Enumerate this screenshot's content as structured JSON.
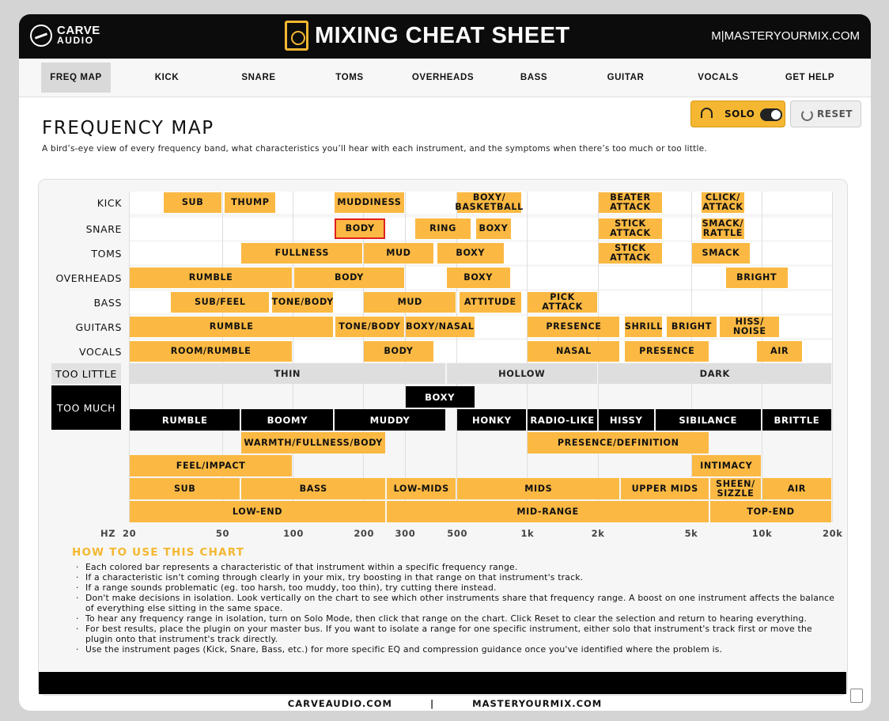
{
  "app": {
    "brand_line1": "CARVE",
    "brand_line2": "AUDIO",
    "title": "MIXING CHEAT SHEET",
    "site": "M|MASTERYOURMIX.COM"
  },
  "nav": [
    {
      "label": "FREQ MAP",
      "active": true
    },
    {
      "label": "KICK"
    },
    {
      "label": "SNARE"
    },
    {
      "label": "TOMS"
    },
    {
      "label": "OVERHEADS"
    },
    {
      "label": "BASS"
    },
    {
      "label": "GUITAR"
    },
    {
      "label": "VOCALS"
    },
    {
      "label": "GET HELP"
    }
  ],
  "controls": {
    "solo_label": "SOLO",
    "solo_on": true,
    "reset_label": "RESET"
  },
  "page": {
    "title": "FREQUENCY MAP",
    "description": "A bird’s-eye view of every frequency band, what characteristics you’ll hear with each instrument, and the symptoms when there’s too much or too little."
  },
  "axis": {
    "unit": "HZ",
    "ticks": [
      {
        "hz": 20,
        "label": "20"
      },
      {
        "hz": 50,
        "label": "50"
      },
      {
        "hz": 100,
        "label": "100"
      },
      {
        "hz": 200,
        "label": "200"
      },
      {
        "hz": 300,
        "label": "300"
      },
      {
        "hz": 500,
        "label": "500"
      },
      {
        "hz": 1000,
        "label": "1k"
      },
      {
        "hz": 2000,
        "label": "2k"
      },
      {
        "hz": 5000,
        "label": "5k"
      },
      {
        "hz": 10000,
        "label": "10k"
      },
      {
        "hz": 20000,
        "label": "20k"
      }
    ]
  },
  "instruments": [
    {
      "name": "KICK",
      "bars": [
        {
          "label": "SUB",
          "lo": 28,
          "hi": 50
        },
        {
          "label": "THUMP",
          "lo": 51,
          "hi": 85
        },
        {
          "label": "MUDDINESS",
          "lo": 150,
          "hi": 300
        },
        {
          "label": "BOXY/ BASKETBALL",
          "lo": 500,
          "hi": 950
        },
        {
          "label": "BEATER ATTACK",
          "lo": 2000,
          "hi": 3800
        },
        {
          "label": "CLICK/ ATTACK",
          "lo": 5500,
          "hi": 8500
        }
      ]
    },
    {
      "name": "SNARE",
      "bars": [
        {
          "label": "BODY",
          "lo": 150,
          "hi": 250,
          "selected": true
        },
        {
          "label": "RING",
          "lo": 330,
          "hi": 580
        },
        {
          "label": "BOXY",
          "lo": 600,
          "hi": 860
        },
        {
          "label": "STICK ATTACK",
          "lo": 2000,
          "hi": 3800
        },
        {
          "label": "SMACK/ RATTLE",
          "lo": 5500,
          "hi": 8500
        }
      ]
    },
    {
      "name": "TOMS",
      "bars": [
        {
          "label": "FULLNESS",
          "lo": 60,
          "hi": 200
        },
        {
          "label": "MUD",
          "lo": 200,
          "hi": 400
        },
        {
          "label": "BOXY",
          "lo": 410,
          "hi": 800
        },
        {
          "label": "STICK ATTACK",
          "lo": 2000,
          "hi": 3800
        },
        {
          "label": "SMACK",
          "lo": 5000,
          "hi": 9000
        }
      ]
    },
    {
      "name": "OVERHEADS",
      "bars": [
        {
          "label": "RUMBLE",
          "lo": 20,
          "hi": 100
        },
        {
          "label": "BODY",
          "lo": 101,
          "hi": 300
        },
        {
          "label": "BOXY",
          "lo": 450,
          "hi": 850
        },
        {
          "label": "BRIGHT",
          "lo": 7000,
          "hi": 13000
        }
      ]
    },
    {
      "name": "BASS",
      "bars": [
        {
          "label": "SUB/FEEL",
          "lo": 30,
          "hi": 80
        },
        {
          "label": "TONE/BODY",
          "lo": 81,
          "hi": 150
        },
        {
          "label": "MUD",
          "lo": 200,
          "hi": 500
        },
        {
          "label": "ATTITUDE",
          "lo": 510,
          "hi": 950
        },
        {
          "label": "PICK ATTACK",
          "lo": 1000,
          "hi": 2000
        }
      ]
    },
    {
      "name": "GUITARS",
      "bars": [
        {
          "label": "RUMBLE",
          "lo": 20,
          "hi": 150
        },
        {
          "label": "TONE/BODY",
          "lo": 151,
          "hi": 300
        },
        {
          "label": "BOXY/NASAL",
          "lo": 301,
          "hi": 600
        },
        {
          "label": "PRESENCE",
          "lo": 1000,
          "hi": 2500
        },
        {
          "label": "SHRILL",
          "lo": 2600,
          "hi": 3800
        },
        {
          "label": "BRIGHT",
          "lo": 3900,
          "hi": 6500
        },
        {
          "label": "HISS/ NOISE",
          "lo": 6600,
          "hi": 12000
        }
      ]
    },
    {
      "name": "VOCALS",
      "bars": [
        {
          "label": "ROOM/RUMBLE",
          "lo": 20,
          "hi": 100
        },
        {
          "label": "BODY",
          "lo": 200,
          "hi": 400
        },
        {
          "label": "NASAL",
          "lo": 1000,
          "hi": 2500
        },
        {
          "label": "PRESENCE",
          "lo": 2600,
          "hi": 6000
        },
        {
          "label": "AIR",
          "lo": 9500,
          "hi": 15000
        }
      ]
    }
  ],
  "too_little": {
    "label": "TOO LITTLE",
    "bars": [
      {
        "label": "THIN",
        "lo": 20,
        "hi": 450
      },
      {
        "label": "HOLLOW",
        "lo": 450,
        "hi": 2000
      },
      {
        "label": "DARK",
        "lo": 2000,
        "hi": 20000
      }
    ]
  },
  "too_much": {
    "label": "TOO MUCH",
    "rows": [
      [
        {
          "label": "BOXY",
          "lo": 300,
          "hi": 600
        }
      ],
      [
        {
          "label": "RUMBLE",
          "lo": 20,
          "hi": 60
        },
        {
          "label": "BOOMY",
          "lo": 60,
          "hi": 150
        },
        {
          "label": "MUDDY",
          "lo": 150,
          "hi": 450
        },
        {
          "label": "HONKY",
          "lo": 500,
          "hi": 1000
        },
        {
          "label": "RADIO-LIKE",
          "lo": 1000,
          "hi": 2000
        },
        {
          "label": "HISSY",
          "lo": 2000,
          "hi": 3500
        },
        {
          "label": "SIBILANCE",
          "lo": 3500,
          "hi": 10000
        },
        {
          "label": "BRITTLE",
          "lo": 10000,
          "hi": 20000
        }
      ]
    ]
  },
  "characteristics": [
    [
      {
        "label": "WARMTH/FULLNESS/BODY",
        "lo": 60,
        "hi": 250
      },
      {
        "label": "PRESENCE/DEFINITION",
        "lo": 1000,
        "hi": 6000
      }
    ],
    [
      {
        "label": "FEEL/IMPACT",
        "lo": 20,
        "hi": 100
      },
      {
        "label": "INTIMACY",
        "lo": 5000,
        "hi": 10000
      }
    ]
  ],
  "bands": [
    {
      "label": "SUB",
      "lo": 20,
      "hi": 60
    },
    {
      "label": "BASS",
      "lo": 60,
      "hi": 250
    },
    {
      "label": "LOW-MIDS",
      "lo": 250,
      "hi": 500
    },
    {
      "label": "MIDS",
      "lo": 500,
      "hi": 2500
    },
    {
      "label": "UPPER MIDS",
      "lo": 2500,
      "hi": 6000
    },
    {
      "label": "SHEEN/ SIZZLE",
      "lo": 6000,
      "hi": 10000
    },
    {
      "label": "AIR",
      "lo": 10000,
      "hi": 20000
    }
  ],
  "ranges": [
    {
      "label": "LOW-END",
      "lo": 20,
      "hi": 250
    },
    {
      "label": "MID-RANGE",
      "lo": 250,
      "hi": 6000
    },
    {
      "label": "TOP-END",
      "lo": 6000,
      "hi": 20000
    }
  ],
  "howto": {
    "title": "HOW TO USE THIS CHART",
    "tips": [
      "Each colored bar represents a characteristic of that instrument within a specific frequency range.",
      "If a characteristic isn't coming through clearly in your mix, try boosting in that range on that instrument's track.",
      "If a range sounds problematic (eg. too harsh, too muddy, too thin), try cutting there instead.",
      "Don't make decisions in isolation. Look vertically on the chart to see which other instruments share that frequency range. A boost on one instrument affects the balance of everything else sitting in the same space.",
      "To hear any frequency range in isolation, turn on Solo Mode, then click that range on the chart. Click Reset to clear the selection and return to hearing everything.",
      "For best results, place the plugin on your master bus. If you want to isolate a range for one specific instrument, either solo that instrument's track first or move the plugin onto that instrument's track directly.",
      "Use the instrument pages (Kick, Snare, Bass, etc.) for more specific EQ and compression guidance once you've identified where the problem is."
    ]
  },
  "footer": {
    "left": "CARVEAUDIO.COM",
    "sep": "|",
    "right": "MASTERYOURMIX.COM"
  }
}
